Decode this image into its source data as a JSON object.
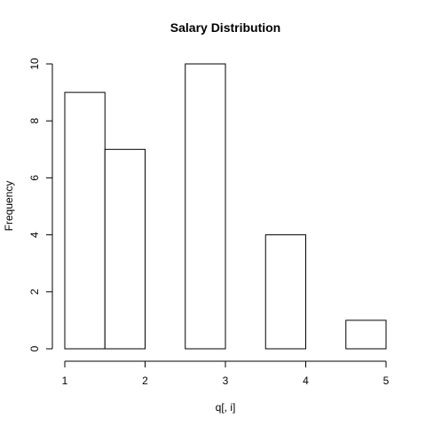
{
  "chart_data": {
    "type": "bar",
    "title": "Salary Distribution",
    "xlabel": "q[, i]",
    "ylabel": "Frequency",
    "bins": [
      {
        "start": 1.0,
        "end": 1.5,
        "count": 9
      },
      {
        "start": 1.5,
        "end": 2.0,
        "count": 7
      },
      {
        "start": 2.0,
        "end": 2.5,
        "count": 0
      },
      {
        "start": 2.5,
        "end": 3.0,
        "count": 10
      },
      {
        "start": 3.0,
        "end": 3.5,
        "count": 0
      },
      {
        "start": 3.5,
        "end": 4.0,
        "count": 4
      },
      {
        "start": 4.0,
        "end": 4.5,
        "count": 0
      },
      {
        "start": 4.5,
        "end": 5.0,
        "count": 1
      }
    ],
    "xlim": [
      1,
      5
    ],
    "ylim": [
      0,
      10
    ],
    "x_ticks": [
      1,
      2,
      3,
      4,
      5
    ],
    "y_ticks": [
      0,
      2,
      4,
      6,
      8,
      10
    ],
    "grid": false
  }
}
